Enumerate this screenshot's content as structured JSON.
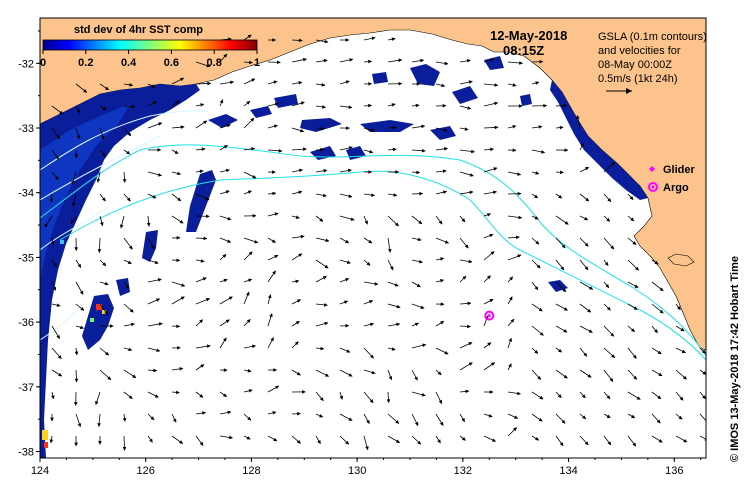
{
  "title": {
    "date": "12-May-2018",
    "time": "08:15Z"
  },
  "colorbar": {
    "title": "std dev of 4hr SST comp",
    "ticks": [
      "0",
      "0.2",
      "0.4",
      "0.6",
      "0.8",
      "1"
    ]
  },
  "info": {
    "line1": "GSLA (0.1m contours)",
    "line2": "and velocities for",
    "line3": "08-May 00:00Z",
    "line4": "0.5m/s (1kt 24h)"
  },
  "legend": {
    "glider": "Glider",
    "argo": "Argo"
  },
  "credit": "© IMOS 13-May-2018 17:42 Hobart Time",
  "axes": {
    "x_ticks": [
      "124",
      "126",
      "128",
      "130",
      "132",
      "134",
      "136"
    ],
    "y_ticks": [
      "-32",
      "-33",
      "-34",
      "-35",
      "-36",
      "-37",
      "-38"
    ],
    "lon_range": [
      124,
      136.6
    ],
    "lat_range": [
      -38.1,
      -31.3
    ]
  },
  "markers": [
    {
      "type": "argo",
      "lon": 132.5,
      "lat": -35.9
    }
  ],
  "colors": {
    "land": "#fcc48c",
    "sst_low": "#0a1e9c",
    "gsla_contour": "#1ee2ea",
    "glider": "#ff00ff",
    "argo": "#ff00ff"
  }
}
